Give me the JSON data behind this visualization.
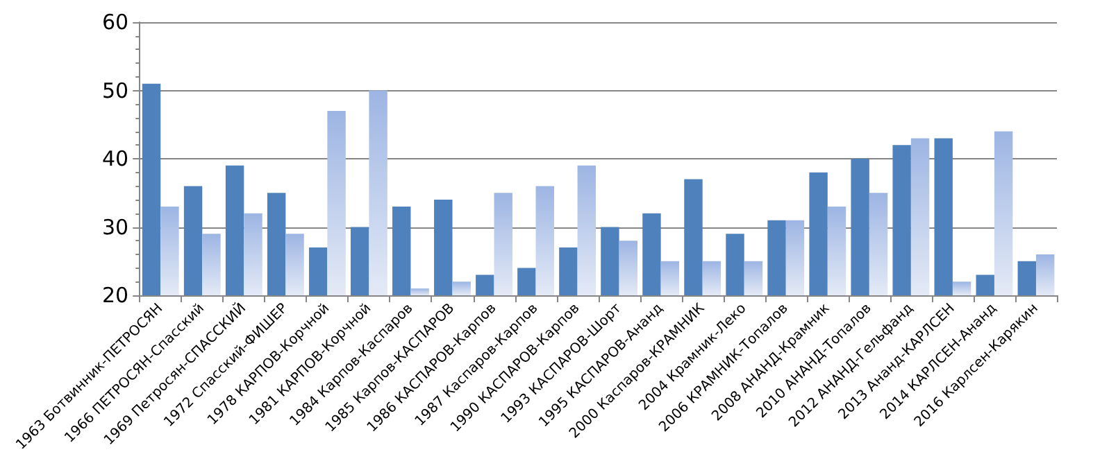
{
  "chart_data": {
    "type": "bar",
    "categories": [
      "1963 Ботвинник-ПЕТРОСЯН",
      "1966 ПЕТРОСЯН-Спасский",
      "1969 Петросян-СПАССКИЙ",
      "1972 Спасский-ФИШЕР",
      "1978 КАРПОВ-Корчной",
      "1981 КАРПОВ-Корчной",
      "1984 Карпов-Каспаров",
      "1985 Карпов-КАСПАРОВ",
      "1986 КАСПАРОВ-Карпов",
      "1987 Каспаров-Карпов",
      "1990 КАСПАРОВ-Карпов",
      "1993 КАСПАРОВ-Шорт",
      "1995 КАСПАРОВ-Ананд",
      "2000 Каспаров-КРАМНИК",
      "2004 Крамник-Леко",
      "2006 КРАМНИК-Топалов",
      "2008 АНАНД-Крамник",
      "2010 АНАНД-Топалов",
      "2012 АНАНД-Гельфанд",
      "2013 Ананд-КАРЛСЕН",
      "2014 КАРЛСЕН-Ананд",
      "2016 Карлсен-Карякин"
    ],
    "series": [
      {
        "color": "#4f81bd",
        "values": [
          51,
          36,
          39,
          35,
          27,
          30,
          33,
          34,
          23,
          24,
          27,
          30,
          32,
          37,
          29,
          31,
          38,
          40,
          42,
          43,
          23,
          25
        ]
      },
      {
        "color": "#9db5e3",
        "values": [
          33,
          29,
          32,
          29,
          47,
          50,
          21,
          22,
          35,
          36,
          39,
          28,
          25,
          25,
          25,
          31,
          33,
          35,
          43,
          22,
          44,
          26
        ]
      }
    ],
    "ylim": [
      20,
      60
    ],
    "yticks": [
      20,
      30,
      40,
      50,
      60
    ],
    "grid": "y"
  }
}
